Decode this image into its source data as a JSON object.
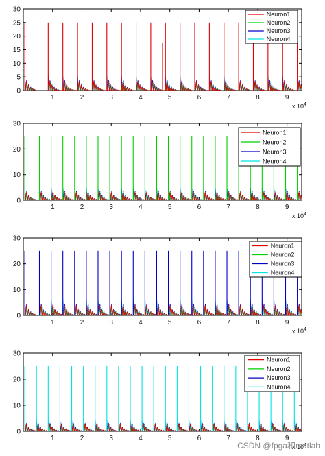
{
  "watermark": "CSDN @fpga和matlab",
  "colors": {
    "Neuron1": "#e00000",
    "Neuron2": "#00d000",
    "Neuron3": "#0000c8",
    "Neuron4": "#00e5e5"
  },
  "chart_data": [
    {
      "type": "line",
      "title": "",
      "xlabel": "",
      "ylabel": "",
      "x_multiplier": "x 10^4",
      "xlim": [
        0,
        9.5
      ],
      "ylim": [
        0,
        30
      ],
      "xticks": [
        1,
        2,
        3,
        4,
        5,
        6,
        7,
        8,
        9
      ],
      "yticks": [
        0,
        5,
        10,
        15,
        20,
        25,
        30
      ],
      "legend_position": "top-right",
      "highlighted_series": "Neuron1",
      "spike_times": [
        0.05,
        0.85,
        1.35,
        1.85,
        2.35,
        2.85,
        3.35,
        3.85,
        4.35,
        4.85,
        5.35,
        5.85,
        6.35,
        6.85,
        7.35,
        7.85,
        8.35,
        8.85,
        9.35
      ],
      "spike_peak": 25,
      "secondary_spikes": [
        [
          4.75,
          17.5
        ]
      ],
      "burst_peak": 6,
      "series": [
        {
          "name": "Neuron1",
          "color": "#e00000"
        },
        {
          "name": "Neuron2",
          "color": "#00d000"
        },
        {
          "name": "Neuron3",
          "color": "#0000c8"
        },
        {
          "name": "Neuron4",
          "color": "#00e5e5"
        }
      ]
    },
    {
      "type": "line",
      "title": "",
      "xlabel": "",
      "ylabel": "",
      "x_multiplier": "x 10^4",
      "xlim": [
        0,
        9.5
      ],
      "ylim": [
        0,
        30
      ],
      "xticks": [
        1,
        2,
        3,
        4,
        5,
        6,
        7,
        8,
        9
      ],
      "yticks": [
        0,
        10,
        20,
        30
      ],
      "legend_position": "top-right",
      "highlighted_series": "Neuron2",
      "spike_times": [
        0.05,
        0.55,
        0.95,
        1.35,
        1.75,
        2.15,
        2.55,
        2.95,
        3.35,
        3.75,
        4.15,
        4.55,
        4.95,
        5.35,
        5.75,
        6.15,
        6.55,
        6.95,
        7.35,
        7.75,
        8.15,
        8.55,
        8.95,
        9.35
      ],
      "spike_peak": 25,
      "secondary_spikes": [],
      "burst_peak": 5.5,
      "series": [
        {
          "name": "Neuron1",
          "color": "#e00000"
        },
        {
          "name": "Neuron2",
          "color": "#00d000"
        },
        {
          "name": "Neuron3",
          "color": "#0000c8"
        },
        {
          "name": "Neuron4",
          "color": "#00e5e5"
        }
      ]
    },
    {
      "type": "line",
      "title": "",
      "xlabel": "",
      "ylabel": "",
      "x_multiplier": "x 10^4",
      "xlim": [
        0,
        9.5
      ],
      "ylim": [
        0,
        30
      ],
      "xticks": [
        1,
        2,
        3,
        4,
        5,
        6,
        7,
        8,
        9
      ],
      "yticks": [
        0,
        10,
        20,
        30
      ],
      "legend_position": "top-right",
      "highlighted_series": "Neuron3",
      "spike_times": [
        0.05,
        0.55,
        0.95,
        1.35,
        1.75,
        2.15,
        2.55,
        2.95,
        3.35,
        3.75,
        4.15,
        4.55,
        4.95,
        5.35,
        5.75,
        6.15,
        6.55,
        6.95,
        7.35,
        7.75,
        8.15,
        8.55,
        8.95,
        9.35
      ],
      "spike_peak": 25,
      "secondary_spikes": [],
      "burst_peak": 7,
      "series": [
        {
          "name": "Neuron1",
          "color": "#e00000"
        },
        {
          "name": "Neuron2",
          "color": "#00d000"
        },
        {
          "name": "Neuron3",
          "color": "#0000c8"
        },
        {
          "name": "Neuron4",
          "color": "#00e5e5"
        }
      ]
    },
    {
      "type": "line",
      "title": "",
      "xlabel": "",
      "ylabel": "",
      "x_multiplier": "x 10^4",
      "xlim": [
        0,
        9.5
      ],
      "ylim": [
        0,
        30
      ],
      "xticks": [
        1,
        2,
        3,
        4,
        5,
        6,
        7,
        8,
        9
      ],
      "yticks": [
        0,
        10,
        20,
        30
      ],
      "legend_position": "top-right",
      "highlighted_series": "Neuron4",
      "spike_times": [
        0.05,
        0.45,
        0.85,
        1.25,
        1.65,
        2.05,
        2.45,
        2.85,
        3.25,
        3.65,
        4.05,
        4.45,
        4.85,
        5.25,
        5.65,
        6.05,
        6.45,
        6.85,
        7.25,
        7.65,
        8.05,
        8.45,
        8.85,
        9.25
      ],
      "spike_peak": 25,
      "secondary_spikes": [],
      "burst_peak": 5,
      "series": [
        {
          "name": "Neuron1",
          "color": "#e00000"
        },
        {
          "name": "Neuron2",
          "color": "#00d000"
        },
        {
          "name": "Neuron3",
          "color": "#0000c8"
        },
        {
          "name": "Neuron4",
          "color": "#00e5e5"
        }
      ]
    }
  ]
}
